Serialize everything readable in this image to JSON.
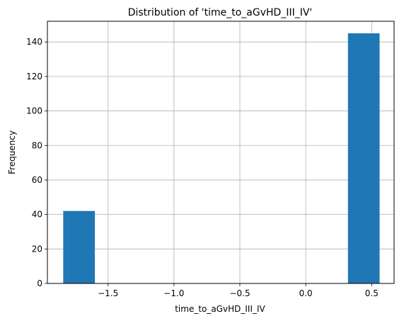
{
  "chart_data": {
    "type": "bar",
    "title": "Distribution of 'time_to_aGvHD_III_IV'",
    "xlabel": "time_to_aGvHD_III_IV",
    "ylabel": "Frequency",
    "bars": [
      {
        "x_start": -1.84,
        "x_end": -1.6,
        "value": 42
      },
      {
        "x_start": -1.6,
        "x_end": -1.36,
        "value": 0
      },
      {
        "x_start": -1.36,
        "x_end": -1.12,
        "value": 0
      },
      {
        "x_start": -1.12,
        "x_end": -0.88,
        "value": 0
      },
      {
        "x_start": -0.88,
        "x_end": -0.64,
        "value": 0
      },
      {
        "x_start": -0.64,
        "x_end": -0.4,
        "value": 0
      },
      {
        "x_start": -0.4,
        "x_end": -0.16,
        "value": 0
      },
      {
        "x_start": -0.16,
        "x_end": 0.08,
        "value": 0
      },
      {
        "x_start": 0.08,
        "x_end": 0.32,
        "value": 0
      },
      {
        "x_start": 0.32,
        "x_end": 0.56,
        "value": 145
      }
    ],
    "xlim": [
      -1.96,
      0.67
    ],
    "ylim": [
      0,
      152
    ],
    "x_ticks": [
      -1.5,
      -1.0,
      -0.5,
      0.0,
      0.5
    ],
    "x_tick_labels": [
      "−1.5",
      "−1.0",
      "−0.5",
      "0.0",
      "0.5"
    ],
    "y_ticks": [
      0,
      20,
      40,
      60,
      80,
      100,
      120,
      140
    ],
    "y_tick_labels": [
      "0",
      "20",
      "40",
      "60",
      "80",
      "100",
      "120",
      "140"
    ],
    "grid": true,
    "bar_color": "#1f77b4",
    "grid_color": "#b0b0b0"
  }
}
